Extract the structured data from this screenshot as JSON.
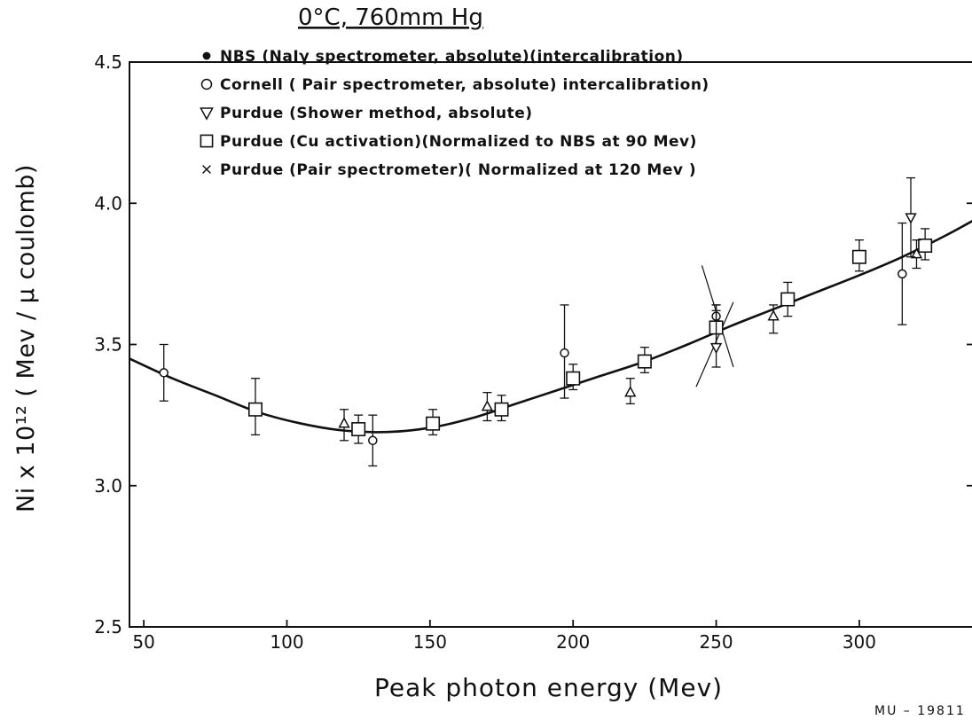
{
  "chart_data": {
    "type": "scatter",
    "title": "0°C,  760mm Hg",
    "xlabel": "Peak photon energy (Mev)",
    "ylabel": "Ni x 10¹² ( Mev / μ coulomb)",
    "xlim": [
      45,
      340
    ],
    "ylim": [
      2.5,
      4.5
    ],
    "x_ticks": [
      50,
      100,
      150,
      200,
      250,
      300
    ],
    "y_ticks": [
      2.5,
      3.0,
      3.5,
      4.0,
      4.5
    ],
    "grid": false,
    "legend_position": "top",
    "legend": [
      {
        "marker": "filled-circle",
        "label": "NBS (NaIγ spectrometer, absolute)(intercalibration)"
      },
      {
        "marker": "open-circle",
        "label": "Cornell ( Pair spectrometer, absolute) intercalibration)"
      },
      {
        "marker": "triangle-down",
        "label": "Purdue (Shower method, absolute)"
      },
      {
        "marker": "square",
        "label": "Purdue (Cu activation)(Normalized to NBS at 90 Mev)"
      },
      {
        "marker": "cross",
        "label": "Purdue (Pair spectrometer)( Normalized at 120 Mev )"
      }
    ],
    "series": [
      {
        "marker": "open-circle",
        "points": [
          {
            "x": 57,
            "y": 3.4,
            "err": [
              3.3,
              3.5
            ]
          },
          {
            "x": 130,
            "y": 3.16,
            "err": [
              3.07,
              3.25
            ]
          },
          {
            "x": 197,
            "y": 3.47,
            "err": [
              3.31,
              3.64
            ]
          },
          {
            "x": 250,
            "y": 3.6,
            "err": [
              3.55,
              3.64
            ]
          },
          {
            "x": 315,
            "y": 3.75,
            "err": [
              3.57,
              3.93
            ]
          }
        ]
      },
      {
        "marker": "square",
        "points": [
          {
            "x": 89,
            "y": 3.27,
            "err": [
              3.18,
              3.38
            ]
          },
          {
            "x": 125,
            "y": 3.2,
            "err": [
              3.15,
              3.25
            ]
          },
          {
            "x": 151,
            "y": 3.22,
            "err": [
              3.18,
              3.27
            ]
          },
          {
            "x": 175,
            "y": 3.27,
            "err": [
              3.23,
              3.32
            ]
          },
          {
            "x": 200,
            "y": 3.38,
            "err": [
              3.34,
              3.43
            ]
          },
          {
            "x": 225,
            "y": 3.44,
            "err": [
              3.4,
              3.49
            ]
          },
          {
            "x": 250,
            "y": 3.56,
            "err": [
              3.5,
              3.62
            ]
          },
          {
            "x": 275,
            "y": 3.66,
            "err": [
              3.6,
              3.72
            ]
          },
          {
            "x": 300,
            "y": 3.81,
            "err": [
              3.76,
              3.87
            ]
          },
          {
            "x": 323,
            "y": 3.85,
            "err": [
              3.8,
              3.91
            ]
          }
        ]
      },
      {
        "marker": "triangle-up",
        "points": [
          {
            "x": 120,
            "y": 3.22,
            "err": [
              3.16,
              3.27
            ]
          },
          {
            "x": 170,
            "y": 3.28,
            "err": [
              3.23,
              3.33
            ]
          },
          {
            "x": 220,
            "y": 3.33,
            "err": [
              3.29,
              3.38
            ]
          },
          {
            "x": 270,
            "y": 3.6,
            "err": [
              3.54,
              3.64
            ]
          },
          {
            "x": 320,
            "y": 3.82,
            "err": [
              3.77,
              3.87
            ]
          }
        ]
      },
      {
        "marker": "triangle-down",
        "points": [
          {
            "x": 250,
            "y": 3.49,
            "err": [
              3.42,
              3.64
            ]
          },
          {
            "x": 318,
            "y": 3.95,
            "err": [
              3.81,
              4.09
            ]
          }
        ]
      }
    ],
    "fit_curve": {
      "x": [
        45,
        60,
        75,
        90,
        105,
        120,
        135,
        150,
        165,
        180,
        195,
        210,
        225,
        240,
        255,
        270,
        285,
        300,
        315,
        330,
        340
      ],
      "y": [
        3.45,
        3.38,
        3.32,
        3.26,
        3.22,
        3.195,
        3.19,
        3.205,
        3.24,
        3.29,
        3.34,
        3.39,
        3.44,
        3.5,
        3.565,
        3.625,
        3.685,
        3.745,
        3.81,
        3.885,
        3.94
      ]
    },
    "diagonal_error_lines": [
      {
        "from": [
          245,
          3.78
        ],
        "to": [
          256,
          3.42
        ]
      },
      {
        "from": [
          243,
          3.35
        ],
        "to": [
          256,
          3.65
        ]
      }
    ],
    "annotation": "MU – 19811"
  }
}
